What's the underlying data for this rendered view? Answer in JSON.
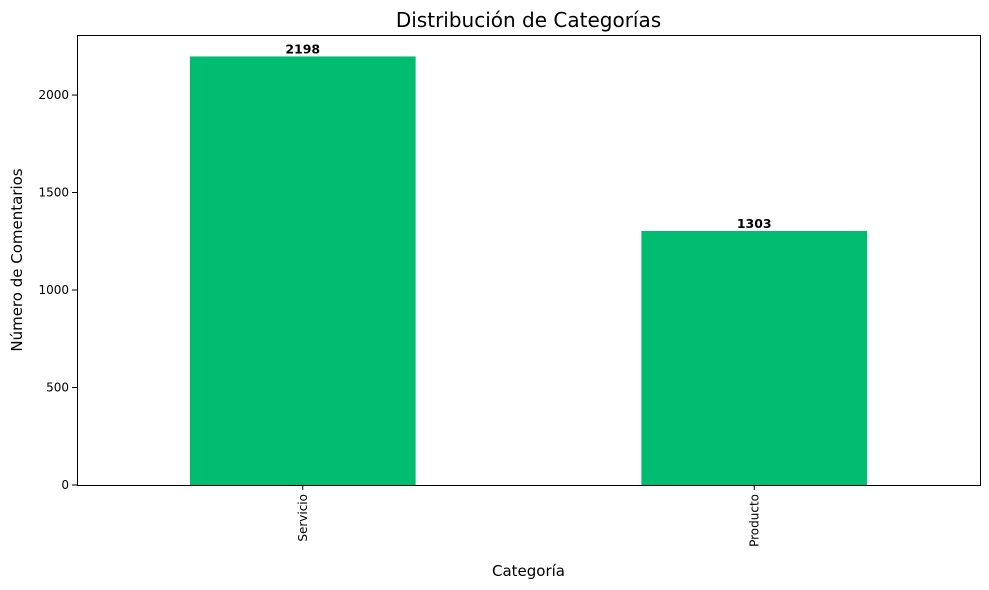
{
  "chart_data": {
    "type": "bar",
    "title": "Distribución de Categorías",
    "xlabel": "Categoría",
    "ylabel": "Número de Comentarios",
    "categories": [
      "Servicio",
      "Producto"
    ],
    "values": [
      2198,
      1303
    ],
    "data_labels": [
      "2198",
      "1303"
    ],
    "ylim": [
      0,
      2308
    ],
    "y_ticks": [
      0,
      500,
      1000,
      1500,
      2000
    ],
    "grid": false,
    "legend": "none",
    "bar_color": "#00BC70",
    "x_tick_rotation": "vertical"
  }
}
